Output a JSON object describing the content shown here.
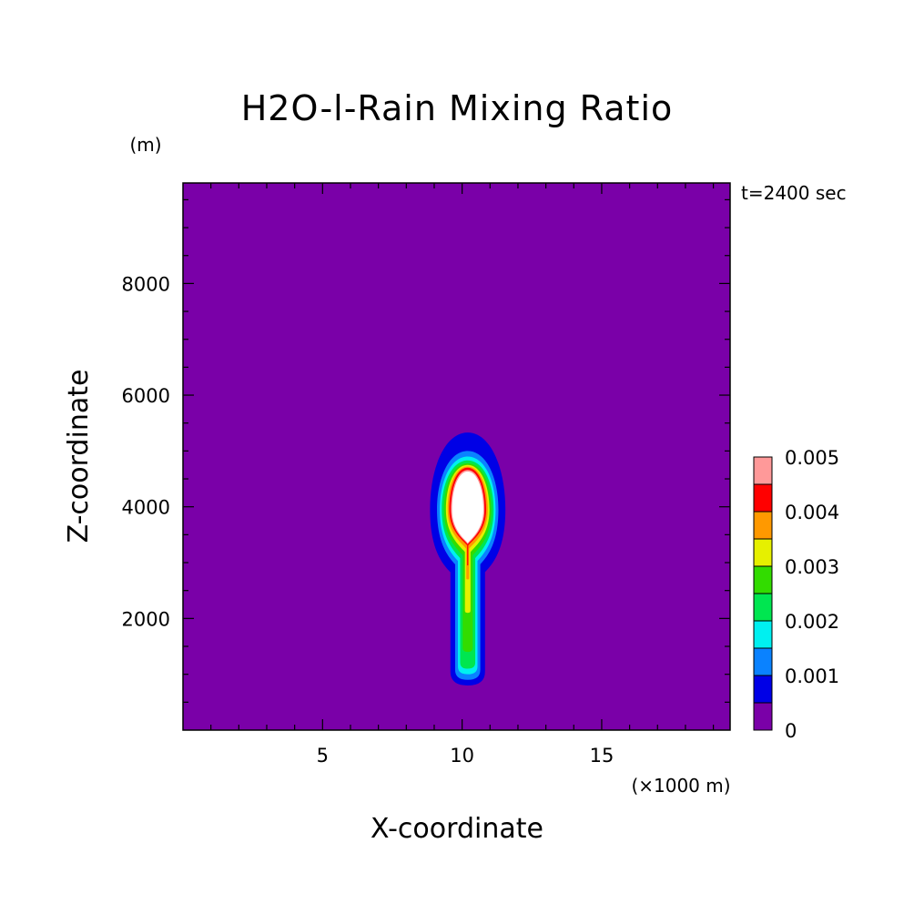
{
  "chart_data": {
    "type": "heatmap",
    "title": "H2O-l-Rain Mixing Ratio",
    "xlabel": "X-coordinate",
    "ylabel": "Z-coordinate",
    "x_unit": "(×1000 m)",
    "y_unit": "(m)",
    "time_label": "t=2400 sec",
    "xlim": [
      0,
      19.6
    ],
    "ylim": [
      0,
      9800
    ],
    "x_ticks": [
      5,
      10,
      15
    ],
    "x_tick_labels": [
      "5",
      "10",
      "15"
    ],
    "y_ticks": [
      2000,
      4000,
      6000,
      8000
    ],
    "y_tick_labels": [
      "2000",
      "4000",
      "6000",
      "8000"
    ],
    "background_color": "#7a00a8",
    "colorbar": {
      "levels": [
        0,
        0.0005,
        0.001,
        0.0015,
        0.002,
        0.0025,
        0.003,
        0.0035,
        0.004,
        0.0045,
        0.005
      ],
      "colors": [
        "#7a00a8",
        "#0000e6",
        "#0a82ff",
        "#00f0f0",
        "#00e650",
        "#32dc00",
        "#e6f000",
        "#ff9900",
        "#ff0000",
        "#ff9999"
      ],
      "tick_labels": [
        "0",
        "0.001",
        "0.002",
        "0.003",
        "0.004",
        "0.005"
      ],
      "tick_values": [
        0,
        0.001,
        0.002,
        0.003,
        0.004,
        0.005
      ]
    },
    "bands": [
      {
        "level": 0.0005,
        "color": "#0000e6",
        "bulb": {
          "cx": 10.2,
          "cy": 3950,
          "rx": 1.35,
          "ry_top": 1380,
          "ry_bot": 1120
        },
        "stem": {
          "half_width": 0.62,
          "bottom": 800
        }
      },
      {
        "level": 0.001,
        "color": "#0a82ff",
        "bulb": {
          "cx": 10.2,
          "cy": 3950,
          "rx": 1.1,
          "ry_top": 1050,
          "ry_bot": 980
        },
        "stem": {
          "half_width": 0.45,
          "bottom": 900
        }
      },
      {
        "level": 0.0015,
        "color": "#00f0f0",
        "bulb": {
          "cx": 10.2,
          "cy": 3950,
          "rx": 1.0,
          "ry_top": 950,
          "ry_bot": 920
        },
        "stem": {
          "half_width": 0.35,
          "bottom": 1000
        }
      },
      {
        "level": 0.002,
        "color": "#00e650",
        "bulb": {
          "cx": 10.2,
          "cy": 3950,
          "rx": 0.93,
          "ry_top": 880,
          "ry_bot": 870
        },
        "stem": {
          "half_width": 0.27,
          "bottom": 1100
        }
      },
      {
        "level": 0.0025,
        "color": "#32dc00",
        "bulb": {
          "cx": 10.2,
          "cy": 3950,
          "rx": 0.85,
          "ry_top": 830,
          "ry_bot": 820
        },
        "stem": {
          "half_width": 0.18,
          "bottom": 1400
        }
      },
      {
        "level": 0.003,
        "color": "#e6f000",
        "bulb": {
          "cx": 10.2,
          "cy": 3950,
          "rx": 0.78,
          "ry_top": 800,
          "ry_bot": 760
        },
        "stem": {
          "half_width": 0.1,
          "bottom": 2100
        }
      },
      {
        "level": 0.0035,
        "color": "#ff9900",
        "bulb": {
          "cx": 10.2,
          "cy": 3950,
          "rx": 0.72,
          "ry_top": 770,
          "ry_bot": 700
        },
        "stem": {
          "half_width": 0.05,
          "bottom": 2700
        }
      },
      {
        "level": 0.004,
        "color": "#ff0000",
        "bulb": {
          "cx": 10.2,
          "cy": 3950,
          "rx": 0.66,
          "ry_top": 750,
          "ry_bot": 640
        },
        "stem": {
          "half_width": 0.02,
          "bottom": 2950
        }
      },
      {
        "level": 0.0045,
        "color": "#ff9999",
        "bulb": {
          "cx": 10.2,
          "cy": 3950,
          "rx": 0.6,
          "ry_top": 710,
          "ry_bot": 620
        },
        "stem": {
          "half_width": 0.0,
          "bottom": 3150
        }
      },
      {
        "level": 0.005,
        "color": "#ffffff",
        "bulb": {
          "cx": 10.2,
          "cy": 3950,
          "rx": 0.56,
          "ry_top": 680,
          "ry_bot": 600
        },
        "stem": {
          "half_width": 0.0,
          "bottom": 3350
        }
      }
    ]
  }
}
